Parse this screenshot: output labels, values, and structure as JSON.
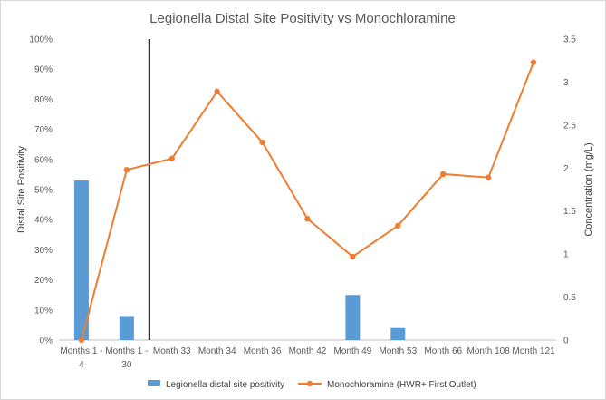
{
  "chart_data": {
    "type": "bar+line",
    "title": "Legionella Distal Site Positivity vs Monochloramine",
    "categories": [
      [
        "Months 1 -",
        "4"
      ],
      [
        "Months 1 -",
        "30"
      ],
      [
        "Month 33"
      ],
      [
        "Month 34"
      ],
      [
        "Month 36"
      ],
      [
        "Month 42"
      ],
      [
        "Month 49"
      ],
      [
        "Month 53"
      ],
      [
        "Month 66"
      ],
      [
        "Month 108"
      ],
      [
        "Month 121"
      ]
    ],
    "series": [
      {
        "name": "Legionella distal site positivity",
        "type": "bar",
        "axis": "left",
        "color": "#5b9bd5",
        "values": [
          0.53,
          0.08,
          null,
          null,
          null,
          null,
          0.15,
          0.04,
          null,
          null,
          null
        ]
      },
      {
        "name": "Monochloramine (HWR+ First Outlet)",
        "type": "line",
        "axis": "right",
        "color": "#ed7d31",
        "values": [
          0.0,
          1.98,
          2.11,
          2.89,
          2.3,
          1.41,
          0.97,
          1.33,
          1.93,
          1.89,
          3.23
        ]
      }
    ],
    "ylabel_left": "Distal Site Positivity",
    "ylabel_right": "Concentration (mg/L)",
    "ylim_left": [
      0,
      1.0
    ],
    "ylim_right": [
      0,
      3.5
    ],
    "yticks_left": [
      "0%",
      "10%",
      "20%",
      "30%",
      "40%",
      "50%",
      "60%",
      "70%",
      "80%",
      "90%",
      "100%"
    ],
    "yticks_right": [
      "0",
      "0.5",
      "1",
      "1.5",
      "2",
      "2.5",
      "3",
      "3.5"
    ],
    "divider_after_category": 1,
    "legend_position": "bottom",
    "grid": false
  }
}
